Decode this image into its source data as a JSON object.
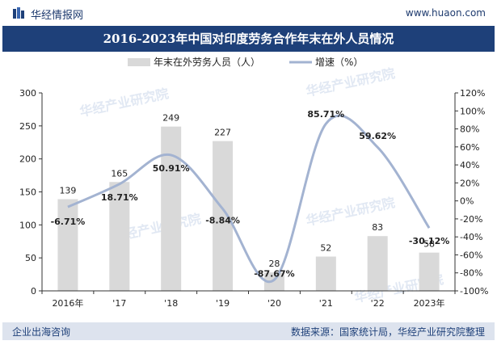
{
  "header": {
    "brand": "华经情报网",
    "site": "www.huaon.com"
  },
  "title": "2016-2023年中国对印度劳务合作年末在外人员情况",
  "footer": {
    "left": "企业出海咨询",
    "right": "数据来源：国家统计局，华经产业研究院整理"
  },
  "watermark": "华经产业研究院",
  "chart_data": {
    "type": "bar+line",
    "categories": [
      "2016年",
      "'17",
      "'18",
      "'19",
      "'20",
      "'21",
      "'22",
      "2023年"
    ],
    "series": [
      {
        "name": "年末在外劳务人员（人）",
        "type": "bar",
        "axis": "left",
        "color": "#d9d9d9",
        "values": [
          139,
          165,
          249,
          227,
          28,
          52,
          83,
          58
        ],
        "labels": [
          "139",
          "165",
          "249",
          "227",
          "28",
          "52",
          "83",
          "58"
        ]
      },
      {
        "name": "增速（%）",
        "type": "line",
        "axis": "right",
        "color": "#a3b3d1",
        "values": [
          -6.71,
          18.71,
          50.91,
          -8.84,
          -87.67,
          85.71,
          59.62,
          -30.12
        ],
        "labels": [
          "-6.71%",
          "18.71%",
          "50.91%",
          "-8.84%",
          "-87.67%",
          "85.71%",
          "59.62%",
          "-30.12%"
        ]
      }
    ],
    "y_left": {
      "range": [
        0,
        300
      ],
      "ticks": [
        0,
        50,
        100,
        150,
        200,
        250,
        300
      ],
      "tick_labels": [
        "0",
        "50",
        "100",
        "150",
        "200",
        "250",
        "300"
      ]
    },
    "y_right": {
      "range": [
        -100,
        120
      ],
      "ticks": [
        -100,
        -80,
        -60,
        -40,
        -20,
        0,
        20,
        40,
        60,
        80,
        100,
        120
      ],
      "tick_labels": [
        "-100%",
        "-80%",
        "-60%",
        "-40%",
        "-20%",
        "0%",
        "20%",
        "40%",
        "60%",
        "80%",
        "100%",
        "120%"
      ]
    },
    "grid": false,
    "legend_position": "top-center"
  }
}
